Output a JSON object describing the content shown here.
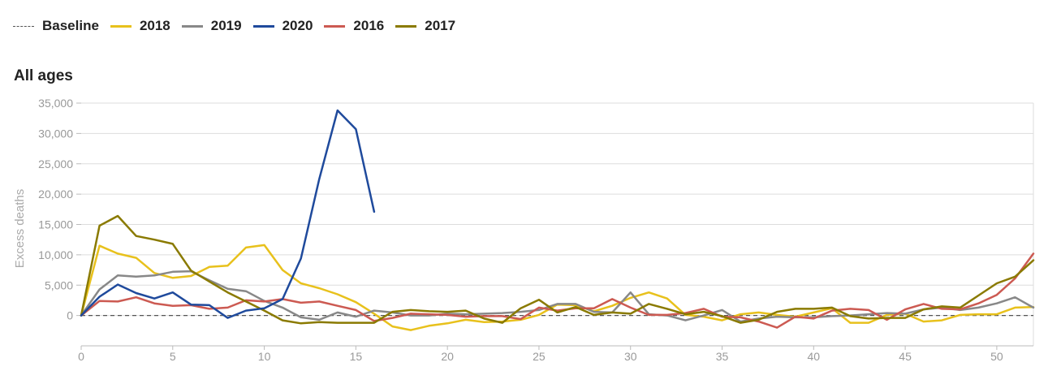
{
  "legend": [
    {
      "name": "Baseline",
      "color": "#555555",
      "dashed": true
    },
    {
      "name": "2018",
      "color": "#e8c11c"
    },
    {
      "name": "2019",
      "color": "#888888"
    },
    {
      "name": "2020",
      "color": "#1f4a9c"
    },
    {
      "name": "2016",
      "color": "#cc5a52"
    },
    {
      "name": "2017",
      "color": "#8a7a00"
    }
  ],
  "subtitle": "All ages",
  "chart_data": {
    "type": "line",
    "title": "",
    "xlabel": "",
    "ylabel": "Excess deaths",
    "xlim": [
      0,
      52
    ],
    "ylim": [
      -5000,
      35000
    ],
    "xticks": [
      0,
      5,
      10,
      15,
      20,
      25,
      30,
      35,
      40,
      45,
      50
    ],
    "yticks": [
      0,
      5000,
      10000,
      15000,
      20000,
      25000,
      30000,
      35000
    ],
    "ytick_labels": [
      "0",
      "5,000",
      "10,000",
      "15,000",
      "20,000",
      "25,000",
      "30,000",
      "35,000"
    ],
    "grid": true,
    "baseline": 0,
    "series": [
      {
        "name": "2018",
        "color": "#e8c11c",
        "x": [
          0,
          1,
          2,
          3,
          4,
          5,
          6,
          7,
          8,
          9,
          10,
          11,
          12,
          13,
          14,
          15,
          16,
          17,
          18,
          19,
          20,
          21,
          22,
          23,
          24,
          25,
          26,
          27,
          28,
          29,
          30,
          31,
          32,
          33,
          34,
          35,
          36,
          37,
          38,
          39,
          40,
          41,
          42,
          43,
          44,
          45,
          46,
          47,
          48,
          49,
          50,
          51,
          52
        ],
        "y": [
          0,
          11500,
          10200,
          9500,
          7000,
          6200,
          6500,
          8000,
          8200,
          11200,
          11600,
          7500,
          5300,
          4500,
          3500,
          2200,
          300,
          -1800,
          -2400,
          -1700,
          -1300,
          -700,
          -1100,
          -1000,
          -700,
          100,
          1800,
          1700,
          700,
          1600,
          2900,
          3800,
          2800,
          100,
          -200,
          -800,
          200,
          500,
          100,
          -200,
          500,
          1200,
          -1200,
          -1200,
          100,
          300,
          -1000,
          -800,
          100,
          200,
          200,
          1300,
          1400
        ]
      },
      {
        "name": "2019",
        "color": "#888888",
        "x": [
          0,
          1,
          2,
          3,
          4,
          5,
          6,
          7,
          8,
          9,
          10,
          11,
          12,
          13,
          14,
          15,
          16,
          17,
          18,
          19,
          20,
          21,
          22,
          23,
          24,
          25,
          26,
          27,
          28,
          29,
          30,
          31,
          32,
          33,
          34,
          35,
          36,
          37,
          38,
          39,
          40,
          41,
          42,
          43,
          44,
          45,
          46,
          47,
          48,
          49,
          50,
          51,
          52
        ],
        "y": [
          0,
          4300,
          6600,
          6400,
          6600,
          7200,
          7300,
          5800,
          4400,
          4000,
          2400,
          1300,
          -300,
          -700,
          500,
          -200,
          800,
          500,
          0,
          0,
          300,
          200,
          300,
          400,
          600,
          900,
          1900,
          1900,
          600,
          500,
          3800,
          200,
          0,
          -800,
          0,
          900,
          -1000,
          -500,
          -200,
          -300,
          -300,
          -100,
          0,
          200,
          400,
          300,
          1000,
          1300,
          900,
          1300,
          2000,
          3000,
          1300
        ]
      },
      {
        "name": "2020",
        "color": "#1f4a9c",
        "x": [
          0,
          1,
          2,
          3,
          4,
          5,
          6,
          7,
          8,
          9,
          10,
          11,
          12,
          13,
          14,
          15,
          16
        ],
        "y": [
          0,
          3100,
          5100,
          3700,
          2800,
          3800,
          1800,
          1700,
          -400,
          800,
          1200,
          2700,
          9400,
          22500,
          33800,
          30700,
          17100
        ]
      },
      {
        "name": "2016",
        "color": "#cc5a52",
        "x": [
          0,
          1,
          2,
          3,
          4,
          5,
          6,
          7,
          8,
          9,
          10,
          11,
          12,
          13,
          14,
          15,
          16,
          17,
          18,
          19,
          20,
          21,
          22,
          23,
          24,
          25,
          26,
          27,
          28,
          29,
          30,
          31,
          32,
          33,
          34,
          35,
          36,
          37,
          38,
          39,
          40,
          41,
          42,
          43,
          44,
          45,
          46,
          47,
          48,
          49,
          50,
          51,
          52
        ],
        "y": [
          0,
          2400,
          2300,
          3000,
          2000,
          1600,
          1700,
          1100,
          1300,
          2500,
          2300,
          2700,
          2100,
          2300,
          1600,
          900,
          -900,
          -400,
          300,
          200,
          100,
          -200,
          -100,
          -100,
          -600,
          1300,
          800,
          1200,
          1200,
          2700,
          1300,
          100,
          100,
          400,
          1100,
          -200,
          -300,
          -1000,
          -2000,
          -200,
          -500,
          800,
          1100,
          900,
          -700,
          1000,
          1900,
          1100,
          1000,
          2000,
          3400,
          6100,
          10200
        ]
      },
      {
        "name": "2017",
        "color": "#8a7a00",
        "x": [
          0,
          1,
          2,
          3,
          4,
          5,
          6,
          7,
          8,
          9,
          10,
          11,
          12,
          13,
          14,
          15,
          16,
          17,
          18,
          19,
          20,
          21,
          22,
          23,
          24,
          25,
          26,
          27,
          28,
          29,
          30,
          31,
          32,
          33,
          34,
          35,
          36,
          37,
          38,
          39,
          40,
          41,
          42,
          43,
          44,
          45,
          46,
          47,
          48,
          49,
          50,
          51,
          52
        ],
        "y": [
          0,
          14800,
          16400,
          13100,
          12500,
          11800,
          7400,
          5600,
          3800,
          2300,
          800,
          -800,
          -1300,
          -1100,
          -1200,
          -1200,
          -1200,
          600,
          900,
          700,
          600,
          800,
          -500,
          -1200,
          1200,
          2600,
          500,
          1400,
          100,
          500,
          300,
          1900,
          1100,
          200,
          600,
          -100,
          -1200,
          -700,
          600,
          1100,
          1100,
          1300,
          -100,
          -500,
          -400,
          -400,
          1000,
          1500,
          1300,
          3300,
          5300,
          6400,
          9100
        ]
      }
    ]
  }
}
